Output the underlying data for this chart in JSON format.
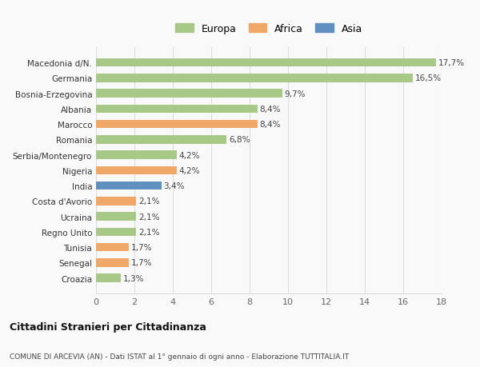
{
  "categories": [
    "Croazia",
    "Senegal",
    "Tunisia",
    "Regno Unito",
    "Ucraina",
    "Costa d'Avorio",
    "India",
    "Nigeria",
    "Serbia/Montenegro",
    "Romania",
    "Marocco",
    "Albania",
    "Bosnia-Erzegovina",
    "Germania",
    "Macedonia d/N."
  ],
  "values": [
    1.3,
    1.7,
    1.7,
    2.1,
    2.1,
    2.1,
    3.4,
    4.2,
    4.2,
    6.8,
    8.4,
    8.4,
    9.7,
    16.5,
    17.7
  ],
  "labels": [
    "1,3%",
    "1,7%",
    "1,7%",
    "2,1%",
    "2,1%",
    "2,1%",
    "3,4%",
    "4,2%",
    "4,2%",
    "6,8%",
    "8,4%",
    "8,4%",
    "9,7%",
    "16,5%",
    "17,7%"
  ],
  "colors": [
    "#a8c888",
    "#f0a868",
    "#f0a868",
    "#a8c888",
    "#a8c888",
    "#f0a868",
    "#6090c0",
    "#f0a868",
    "#a8c888",
    "#a8c888",
    "#f0a868",
    "#a8c888",
    "#a8c888",
    "#a8c888",
    "#a8c888"
  ],
  "legend_labels": [
    "Europa",
    "Africa",
    "Asia"
  ],
  "legend_colors": [
    "#a8c888",
    "#f0a868",
    "#6090c0"
  ],
  "xlim": [
    0,
    18
  ],
  "xticks": [
    0,
    2,
    4,
    6,
    8,
    10,
    12,
    14,
    16,
    18
  ],
  "title": "Cittadini Stranieri per Cittadinanza",
  "subtitle": "COMUNE DI ARCEVIA (AN) - Dati ISTAT al 1° gennaio di ogni anno - Elaborazione TUTTITALIA.IT",
  "background_color": "#f9f9f9",
  "grid_color": "#dddddd"
}
